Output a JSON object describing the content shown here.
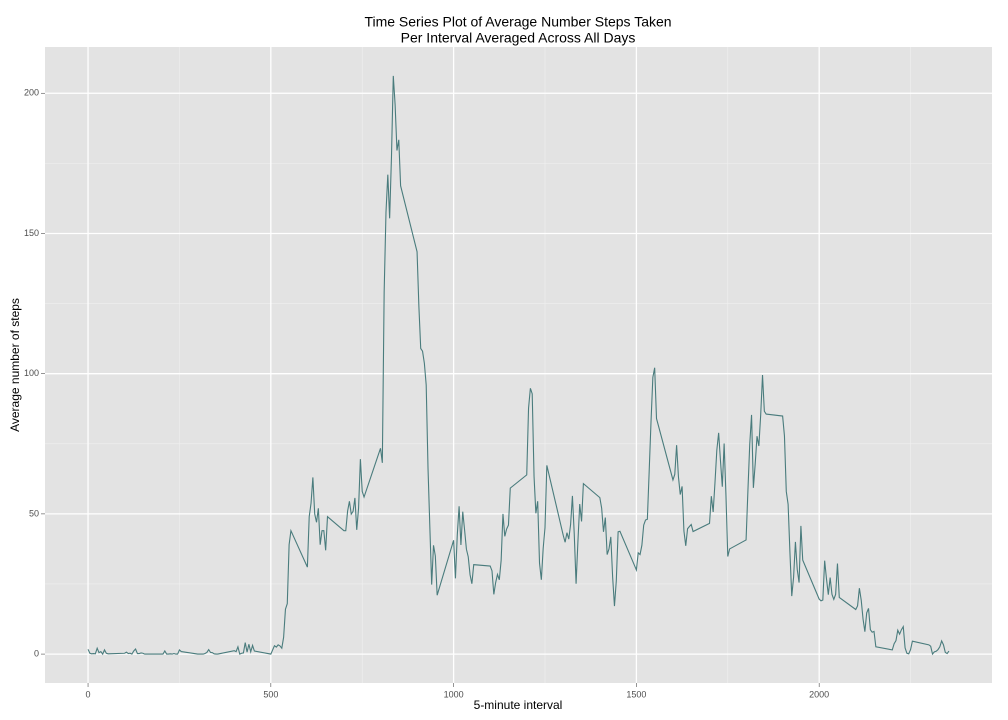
{
  "chart_data": {
    "type": "line",
    "title": [
      "Time Series Plot of Average Number Steps Taken",
      "Per Interval Averaged Across All Days"
    ],
    "x_label": "5-minute interval",
    "y_label": "Average number of steps",
    "x": [
      0,
      5,
      10,
      15,
      20,
      25,
      30,
      35,
      40,
      45,
      50,
      55,
      100,
      105,
      110,
      115,
      120,
      125,
      130,
      135,
      140,
      145,
      150,
      155,
      200,
      205,
      210,
      215,
      220,
      225,
      230,
      235,
      240,
      245,
      250,
      255,
      300,
      305,
      310,
      315,
      320,
      325,
      330,
      335,
      340,
      345,
      350,
      355,
      400,
      405,
      410,
      415,
      420,
      425,
      430,
      435,
      440,
      445,
      450,
      455,
      500,
      505,
      510,
      515,
      520,
      525,
      530,
      535,
      540,
      545,
      550,
      555,
      600,
      605,
      610,
      615,
      620,
      625,
      630,
      635,
      640,
      645,
      650,
      655,
      700,
      705,
      710,
      715,
      720,
      725,
      730,
      735,
      740,
      745,
      750,
      755,
      800,
      805,
      810,
      815,
      820,
      825,
      830,
      835,
      840,
      845,
      850,
      855,
      900,
      905,
      910,
      915,
      920,
      925,
      930,
      935,
      940,
      945,
      950,
      955,
      1000,
      1005,
      1010,
      1015,
      1020,
      1025,
      1030,
      1035,
      1040,
      1045,
      1050,
      1055,
      1100,
      1105,
      1110,
      1115,
      1120,
      1125,
      1130,
      1135,
      1140,
      1145,
      1150,
      1155,
      1200,
      1205,
      1210,
      1215,
      1220,
      1225,
      1230,
      1235,
      1240,
      1245,
      1250,
      1255,
      1300,
      1305,
      1310,
      1315,
      1320,
      1325,
      1330,
      1335,
      1340,
      1345,
      1350,
      1355,
      1400,
      1405,
      1410,
      1415,
      1420,
      1425,
      1430,
      1435,
      1440,
      1445,
      1450,
      1455,
      1500,
      1505,
      1510,
      1515,
      1520,
      1525,
      1530,
      1535,
      1540,
      1545,
      1550,
      1555,
      1600,
      1605,
      1610,
      1615,
      1620,
      1625,
      1630,
      1635,
      1640,
      1645,
      1650,
      1655,
      1700,
      1705,
      1710,
      1715,
      1720,
      1725,
      1730,
      1735,
      1740,
      1745,
      1750,
      1755,
      1800,
      1805,
      1810,
      1815,
      1820,
      1825,
      1830,
      1835,
      1840,
      1845,
      1850,
      1855,
      1900,
      1905,
      1910,
      1915,
      1920,
      1925,
      1930,
      1935,
      1940,
      1945,
      1950,
      1955,
      2000,
      2005,
      2010,
      2015,
      2020,
      2025,
      2030,
      2035,
      2040,
      2045,
      2050,
      2055,
      2100,
      2105,
      2110,
      2115,
      2120,
      2125,
      2130,
      2135,
      2140,
      2145,
      2150,
      2155,
      2200,
      2205,
      2210,
      2215,
      2220,
      2225,
      2230,
      2235,
      2240,
      2245,
      2250,
      2255,
      2300,
      2305,
      2310,
      2315,
      2320,
      2325,
      2330,
      2335,
      2340,
      2345,
      2350,
      2355
    ],
    "series": [
      {
        "color": "#4a7c7d",
        "values": [
          1.7,
          0.3,
          0.1,
          0.2,
          0.1,
          2.1,
          0.5,
          0.9,
          0,
          1.5,
          0.3,
          0.1,
          0.3,
          0.7,
          0.2,
          0.3,
          0,
          1.1,
          1.8,
          0.2,
          0.2,
          0.4,
          0.3,
          0,
          0,
          0,
          1.1,
          0,
          0,
          0.1,
          0,
          0.2,
          0,
          0,
          1.5,
          0.9,
          0,
          0,
          0,
          0,
          0.2,
          0.6,
          1.6,
          0.6,
          0.5,
          0.1,
          0,
          0,
          1.2,
          0.9,
          2.6,
          0,
          0.3,
          0.4,
          4.1,
          0.7,
          3.5,
          0.8,
          3.1,
          1.1,
          0,
          1.5,
          3,
          2.5,
          3.3,
          2.9,
          2.1,
          6,
          16,
          18,
          39,
          44,
          31,
          49,
          53.8,
          63,
          50,
          47,
          52,
          39,
          44,
          44,
          37,
          49,
          44,
          44,
          51,
          54.5,
          49.9,
          50.9,
          55.7,
          44.3,
          52,
          69.5,
          58,
          56,
          73.4,
          68.2,
          129,
          157.5,
          171,
          155.4,
          177.3,
          206.2,
          195.9,
          179.6,
          183.4,
          167,
          143.5,
          124,
          109,
          108,
          103.7,
          96,
          66.2,
          45.2,
          24.8,
          38.8,
          35,
          21,
          40.6,
          27,
          42.4,
          52.7,
          38.9,
          50.8,
          44.3,
          37.4,
          34.7,
          28.3,
          25.1,
          31.9,
          31.4,
          29.7,
          21.3,
          25.5,
          28.4,
          26.5,
          33.4,
          50,
          42,
          44.6,
          46,
          59.2,
          63.9,
          87.7,
          94.8,
          92.8,
          63.4,
          50.2,
          54.5,
          32.4,
          26.5,
          37.7,
          45.1,
          67.3,
          42.3,
          39.9,
          43.3,
          41,
          46.2,
          56.4,
          42.8,
          25.1,
          40,
          53.5,
          47.3,
          60.8,
          55.8,
          52,
          43.6,
          48.7,
          35.5,
          37.5,
          41.8,
          27.5,
          17.1,
          26.1,
          43.6,
          43.8,
          30,
          36.1,
          35.5,
          38.8,
          46,
          47.8,
          48.1,
          65.3,
          82.9,
          98.7,
          102.1,
          84,
          62.1,
          64.1,
          74.5,
          63.2,
          56.9,
          59.8,
          43.9,
          38.6,
          44.7,
          45.5,
          46.2,
          43.7,
          46.6,
          56.3,
          50.7,
          61.2,
          72.7,
          78.9,
          68.9,
          59.7,
          75.1,
          56.5,
          34.8,
          37.5,
          40.7,
          58,
          74.7,
          85.3,
          59.3,
          67.8,
          77.7,
          74.2,
          85.3,
          99.5,
          86.6,
          85.6,
          84.9,
          77.8,
          58,
          53.4,
          36.3,
          20.7,
          27.4,
          40,
          30.2,
          25.5,
          45.7,
          33.5,
          19.6,
          19,
          19.3,
          33.3,
          26.8,
          21.2,
          27.3,
          21.3,
          19.5,
          21.3,
          32.3,
          20.2,
          15.9,
          17.2,
          23.5,
          19.2,
          12.5,
          8,
          14.7,
          16.3,
          8.7,
          7.8,
          8.1,
          2.6,
          1.5,
          3.7,
          4.8,
          8.5,
          7.1,
          8.7,
          9.8,
          2.2,
          0.3,
          0.1,
          1.6,
          4.6,
          3.3,
          2.8,
          0,
          0.8,
          1,
          1.6,
          2.6,
          4.7,
          3.3,
          0.6,
          0.2,
          1.1
        ]
      }
    ],
    "xlim": [
      -117.75,
      2472.75
    ],
    "ylim": [
      -10.31,
      216.5
    ],
    "xticks": [
      0,
      500,
      1000,
      1500,
      2000
    ],
    "yticks": [
      0,
      50,
      100,
      150,
      200
    ],
    "xminorticks": [
      250,
      750,
      1250,
      1750,
      2250
    ],
    "yminorticks": [
      25,
      75,
      125,
      175
    ],
    "grid": true
  }
}
